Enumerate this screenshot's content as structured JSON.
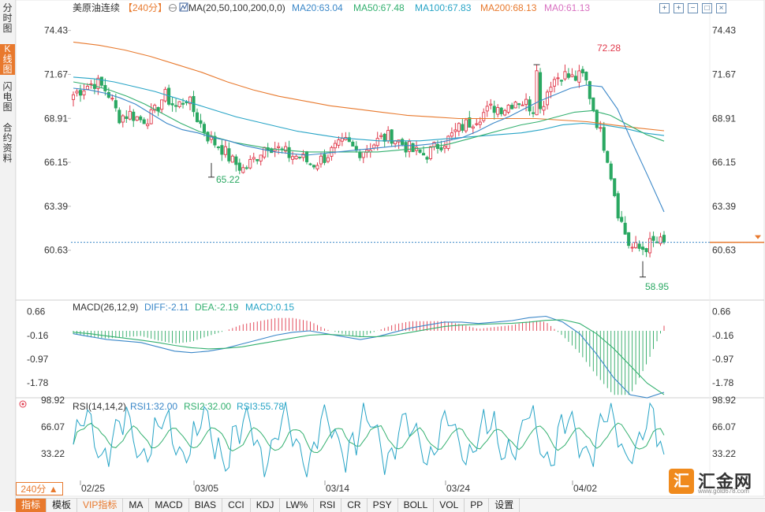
{
  "left_tabs": [
    {
      "label": "分时图",
      "active": false
    },
    {
      "label": "K线图",
      "active": true
    },
    {
      "label": "闪电图",
      "active": false
    },
    {
      "label": "合约资料",
      "active": false
    }
  ],
  "header": {
    "symbol": "美原油连续",
    "period_tag": "【240分】",
    "ma_params": "MA(20,50,100,200,0,0)",
    "ma20": "MA20:63.04",
    "ma50": "MA50:67.48",
    "ma100": "MA100:67.83",
    "ma200": "MA200:68.13",
    "ma0": "MA0:61.13"
  },
  "toolbar_icons": [
    "move-icon",
    "zoom-in-icon",
    "zoom-out-icon",
    "fullscreen-icon",
    "close-icon"
  ],
  "price_axis": [
    "74.43",
    "71.67",
    "68.91",
    "66.15",
    "63.39",
    "60.63"
  ],
  "annotations": {
    "high": "72.28",
    "low1": "65.22",
    "low2": "58.95"
  },
  "macd": {
    "title": "MACD(26,12,9)",
    "diff": "DIFF:-2.11",
    "dea": "DEA:-2.19",
    "macd": "MACD:0.15",
    "axis": [
      "0.66",
      "-0.16",
      "-0.97",
      "-1.78"
    ]
  },
  "rsi": {
    "title": "RSI(14,14,2)",
    "rsi1": "RSI1:32.00",
    "rsi2": "RSI2:32.00",
    "rsi3": "RSI3:55.78",
    "axis": [
      "98.92",
      "66.07",
      "33.22"
    ]
  },
  "date_axis": [
    "02/25",
    "03/05",
    "03/14",
    "03/24",
    "04/02"
  ],
  "period_button": "240分 ▲",
  "bottom_tabs": [
    {
      "label": "指标",
      "active": true,
      "vip": false
    },
    {
      "label": "模板",
      "active": false,
      "vip": false
    },
    {
      "label": "VIP指标",
      "active": false,
      "vip": true
    },
    {
      "label": "MA",
      "active": false,
      "vip": false
    },
    {
      "label": "MACD",
      "active": false,
      "vip": false
    },
    {
      "label": "BIAS",
      "active": false,
      "vip": false
    },
    {
      "label": "CCI",
      "active": false,
      "vip": false
    },
    {
      "label": "KDJ",
      "active": false,
      "vip": false
    },
    {
      "label": "LW%",
      "active": false,
      "vip": false
    },
    {
      "label": "RSI",
      "active": false,
      "vip": false
    },
    {
      "label": "CR",
      "active": false,
      "vip": false
    },
    {
      "label": "PSY",
      "active": false,
      "vip": false
    },
    {
      "label": "BOLL",
      "active": false,
      "vip": false
    },
    {
      "label": "VOL",
      "active": false,
      "vip": false
    },
    {
      "label": "PP",
      "active": false,
      "vip": false
    },
    {
      "label": "设置",
      "active": false,
      "vip": false
    }
  ],
  "logo": {
    "text": "汇金网",
    "url": "www.gold678.com"
  },
  "colors": {
    "up": "#e0394b",
    "down": "#2aa862",
    "ma20": "#3a87c8",
    "ma50": "#33b06f",
    "ma100": "#27a4c6",
    "ma200": "#e8792d",
    "ma0": "#d870c0",
    "accent": "#e8792d"
  },
  "chart_data": {
    "type": "candlestick",
    "instrument": "美原油连续",
    "period": "240分",
    "price_range": [
      57.5,
      75.5
    ],
    "last_price_line": 61.13,
    "high_mark": 72.28,
    "low_marks": [
      65.22,
      58.95
    ],
    "price_path": [
      70.4,
      70.9,
      71.2,
      70.6,
      69.0,
      69.2,
      68.8,
      69.1,
      70.4,
      69.6,
      70.2,
      68.8,
      67.6,
      67.1,
      66.2,
      65.7,
      66.4,
      67.3,
      67.0,
      66.6,
      66.5,
      66.0,
      66.4,
      67.0,
      67.4,
      66.8,
      67.1,
      67.6,
      67.8,
      67.3,
      66.8,
      66.6,
      67.2,
      67.6,
      68.3,
      68.7,
      69.2,
      69.6,
      69.6,
      70.1,
      69.8,
      69.2,
      71.2,
      71.7,
      71.4,
      71.6,
      68.9,
      66.6,
      62.9,
      60.8,
      60.7,
      61.1,
      61.1
    ],
    "ma20": [
      70.8,
      70.7,
      70.5,
      70.2,
      69.8,
      69.2,
      68.6,
      68.2,
      68.0,
      67.7,
      67.5,
      67.2,
      67.0,
      66.8,
      66.7,
      66.6,
      66.7,
      66.8,
      66.9,
      67.0,
      67.1,
      67.2,
      67.2,
      67.3,
      67.5,
      67.7,
      68.1,
      68.6,
      69.0,
      69.5,
      70.0,
      70.4,
      70.8,
      71.0,
      70.9,
      69.5,
      67.3,
      65.2,
      63.04
    ],
    "ma50": [
      71.2,
      71.0,
      70.7,
      70.3,
      69.8,
      69.2,
      68.6,
      68.1,
      67.7,
      67.4,
      67.2,
      67.0,
      66.9,
      66.8,
      66.8,
      66.8,
      66.8,
      66.8,
      66.9,
      67.0,
      67.1,
      67.3,
      67.6,
      67.9,
      68.2,
      68.5,
      68.7,
      69.0,
      69.3,
      69.4,
      69.1,
      68.5,
      67.9,
      67.48
    ],
    "ma100": [
      71.5,
      71.4,
      71.2,
      70.9,
      70.6,
      70.2,
      69.8,
      69.4,
      69.0,
      68.7,
      68.4,
      68.1,
      67.9,
      67.7,
      67.6,
      67.5,
      67.5,
      67.5,
      67.6,
      67.7,
      67.8,
      67.9,
      68.0,
      68.2,
      68.5,
      68.6,
      68.5,
      68.3,
      68.0,
      67.83
    ],
    "ma200": [
      73.7,
      73.5,
      73.2,
      72.8,
      72.3,
      71.8,
      71.2,
      70.7,
      70.3,
      70.0,
      69.7,
      69.5,
      69.3,
      69.1,
      69.0,
      68.9,
      68.9,
      68.9,
      68.9,
      68.8,
      68.7,
      68.5,
      68.3,
      68.13
    ],
    "macd_range": [
      -2.3,
      1.0
    ],
    "macd_diff_path": [
      -0.1,
      -0.2,
      -0.3,
      -0.35,
      -0.4,
      -0.55,
      -0.7,
      -0.75,
      -0.7,
      -0.6,
      -0.45,
      -0.3,
      -0.15,
      -0.05,
      0.0,
      -0.1,
      -0.2,
      -0.3,
      -0.2,
      -0.05,
      0.1,
      0.2,
      0.3,
      0.3,
      0.25,
      0.3,
      0.35,
      0.45,
      0.5,
      0.3,
      -0.1,
      -0.8,
      -1.6,
      -2.2,
      -2.3,
      -2.11
    ],
    "macd_dea_path": [
      -0.05,
      -0.1,
      -0.18,
      -0.25,
      -0.32,
      -0.4,
      -0.5,
      -0.58,
      -0.62,
      -0.6,
      -0.55,
      -0.45,
      -0.35,
      -0.25,
      -0.15,
      -0.12,
      -0.15,
      -0.2,
      -0.2,
      -0.15,
      -0.05,
      0.05,
      0.15,
      0.2,
      0.22,
      0.24,
      0.26,
      0.3,
      0.36,
      0.38,
      0.25,
      -0.1,
      -0.6,
      -1.2,
      -1.8,
      -2.19
    ],
    "rsi_range": [
      0,
      100
    ],
    "rsi_axis_ticks": [
      98.92,
      66.07,
      33.22
    ],
    "dates": [
      "02/25",
      "03/05",
      "03/14",
      "03/24",
      "04/02"
    ]
  }
}
